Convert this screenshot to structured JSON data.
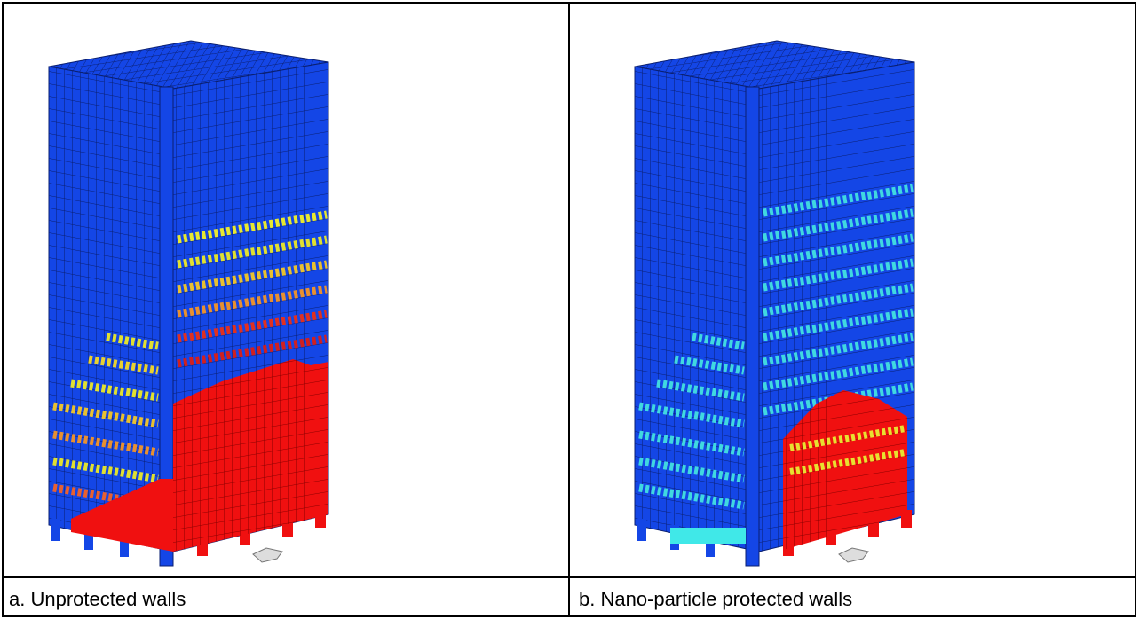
{
  "panels": [
    {
      "caption": "a. Unprotected walls"
    },
    {
      "caption": "b. Nano-particle protected walls"
    }
  ]
}
